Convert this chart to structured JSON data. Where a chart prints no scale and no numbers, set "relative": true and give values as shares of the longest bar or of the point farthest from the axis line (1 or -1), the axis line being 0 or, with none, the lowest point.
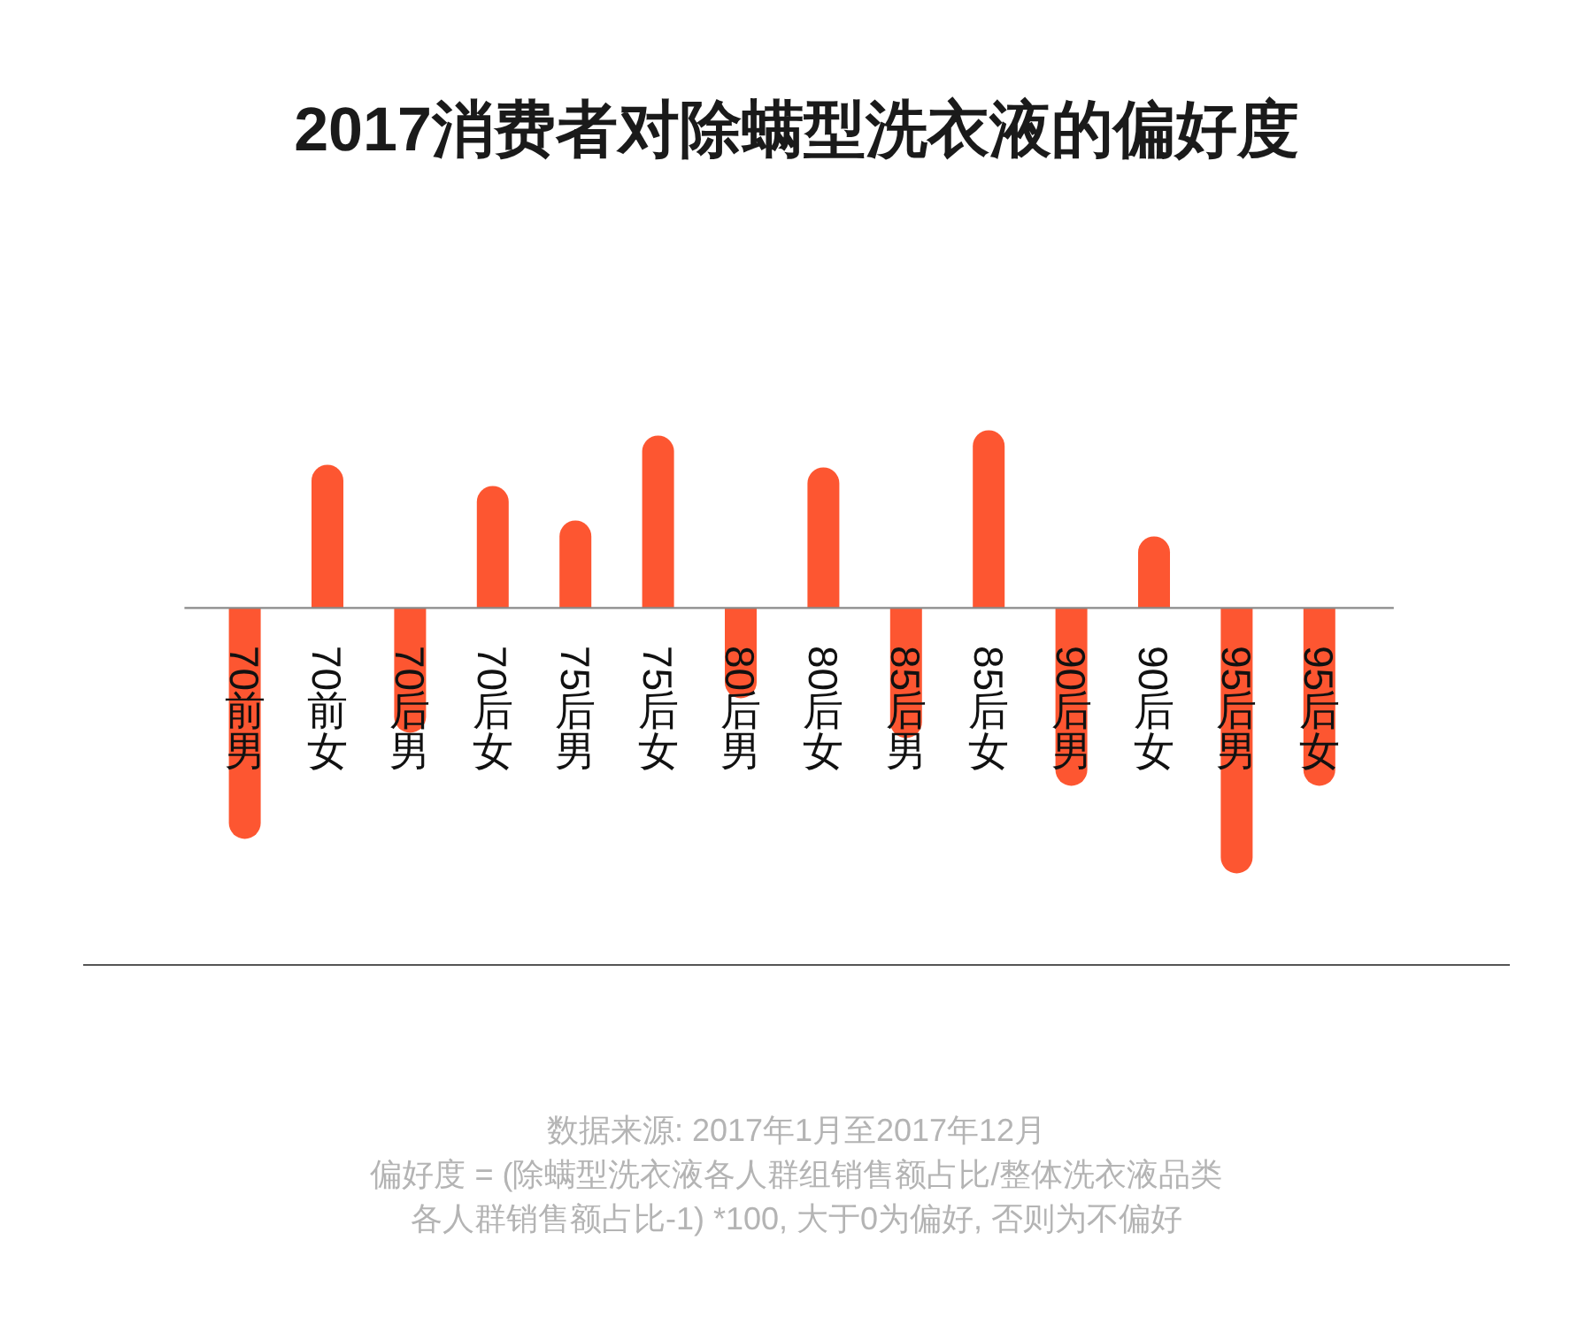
{
  "chart_data": {
    "type": "bar",
    "title": "2017消费者对除螨型洗衣液的偏好度",
    "categories": [
      "70前男",
      "70前女",
      "70后男",
      "70后女",
      "75后男",
      "75后女",
      "80后男",
      "80后女",
      "85后男",
      "85后女",
      "90后男",
      "90后女",
      "95后男",
      "95后女"
    ],
    "values": [
      -0.87,
      0.54,
      -0.47,
      0.46,
      0.33,
      0.65,
      -0.34,
      0.53,
      -0.49,
      0.67,
      -0.67,
      0.27,
      -1,
      -0.67
    ],
    "color": "#fd5631",
    "relative": true,
    "annotations": [
      "数据来源: 2017年1月至2017年12月",
      "偏好度 = (除螨型洗衣液各人群组销售额占比/整体洗衣液品类各人群销售额占比-1) *100, 大于0为偏好, 否则为不偏好"
    ]
  }
}
